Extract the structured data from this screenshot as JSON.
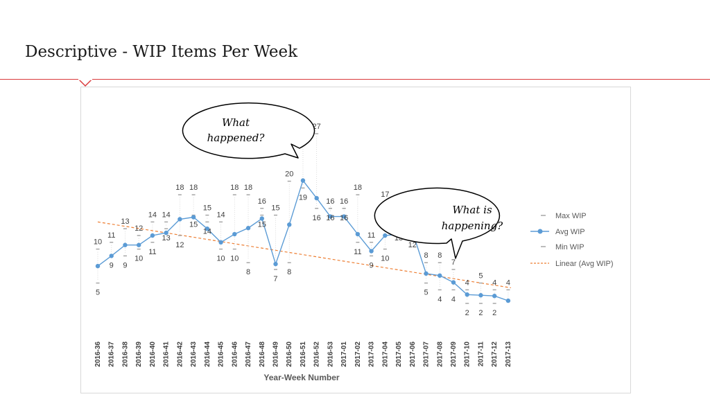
{
  "slide": {
    "title": "Descriptive - WIP Items Per Week"
  },
  "colors": {
    "avg_line": "#5b9bd5",
    "marker": "#5b9bd5",
    "trend": "#ed7d31",
    "minmax": "#a6a6a6",
    "rule": "#d9383a"
  },
  "callouts": {
    "left": {
      "line1": "What",
      "line2": "happened?"
    },
    "right": {
      "line1": "What is",
      "line2": "happening?"
    }
  },
  "chart_data": {
    "type": "line",
    "xlabel": "Year-Week Number",
    "ylabel": "",
    "legend_position": "right",
    "grid": false,
    "categories": [
      "2016-36",
      "2016-37",
      "2016-38",
      "2016-39",
      "2016-40",
      "2016-41",
      "2016-42",
      "2016-43",
      "2016-44",
      "2016-45",
      "2016-46",
      "2016-47",
      "2016-48",
      "2016-49",
      "2016-50",
      "2016-51",
      "2016-52",
      "2016-53",
      "2017-01",
      "2017-02",
      "2017-03",
      "2017-04",
      "2017-05",
      "2017-06",
      "2017-07",
      "2017-08",
      "2017-09",
      "2017-10",
      "2017-11",
      "2017-12",
      "2017-13"
    ],
    "series": [
      {
        "name": "Max WIP",
        "values": [
          10,
          11,
          13,
          12,
          14,
          14,
          18,
          18,
          15,
          14,
          18,
          18,
          16,
          15,
          20,
          27,
          27,
          16,
          16,
          18,
          11,
          17,
          13,
          15,
          8,
          8,
          7,
          4,
          5,
          4,
          4
        ]
      },
      {
        "name": "Avg WIP",
        "values": [
          7.5,
          9,
          10.6,
          10.6,
          12,
          12.4,
          14.4,
          14.7,
          13,
          11,
          12.2,
          13.1,
          14.5,
          7.8,
          13.6,
          20.1,
          17.5,
          14.8,
          14.8,
          12.2,
          9.7,
          12,
          12.2,
          12.6,
          6.4,
          6.1,
          5.1,
          3.3,
          3.2,
          3.1,
          2.4
        ]
      },
      {
        "name": "Min WIP",
        "values": [
          5,
          9,
          9,
          10,
          11,
          13,
          12,
          15,
          14,
          10,
          10,
          8,
          15,
          7,
          8,
          19,
          16,
          16,
          16,
          11,
          9,
          10,
          13,
          12,
          5,
          4,
          4,
          2,
          2,
          2,
          null
        ]
      }
    ],
    "trend": {
      "name": "Linear (Avg WIP)",
      "start": 14,
      "end": 4.3
    }
  }
}
